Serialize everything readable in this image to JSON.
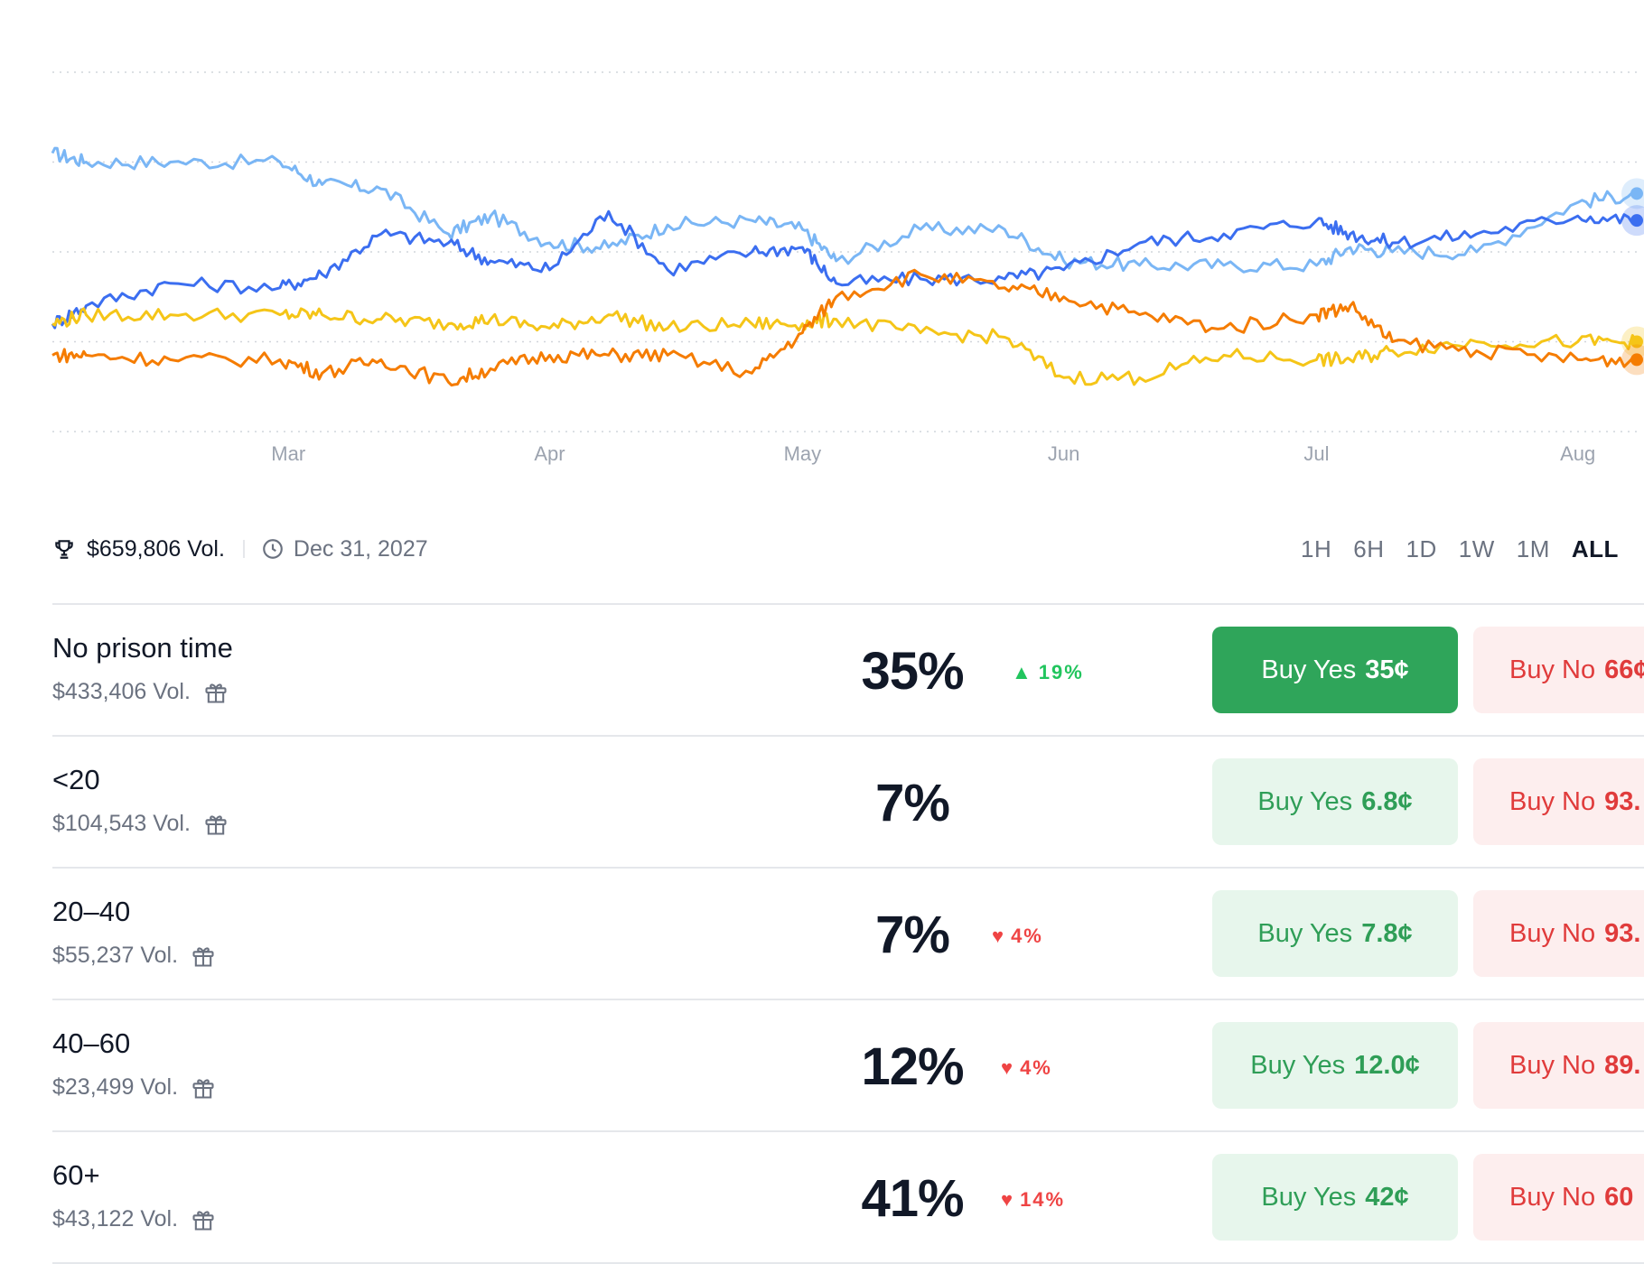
{
  "chart_data": {
    "type": "line",
    "x_ticks": [
      "Mar",
      "Apr",
      "May",
      "Jun",
      "Jul",
      "Aug"
    ],
    "series": [
      {
        "color": "#7ab6f5",
        "x": [
          "Feb 1",
          "Feb 5",
          "Feb 15",
          "Feb 28",
          "Mar 5",
          "Mar 12",
          "Mar 20",
          "Mar 25",
          "Apr 1",
          "Apr 8",
          "Apr 15",
          "Apr 25",
          "May 1",
          "May 5",
          "May 15",
          "May 25",
          "Jun 1",
          "Jun 10",
          "Jun 20",
          "Jul 1",
          "Jul 5",
          "Jul 10",
          "Jul 20",
          "Aug 1",
          "Aug 8"
        ],
        "values": [
          62,
          60,
          60,
          60,
          55,
          54,
          44,
          48,
          42,
          41,
          46,
          47,
          45,
          38,
          45,
          45,
          38,
          37,
          37,
          37,
          41,
          40,
          40,
          51,
          53
        ]
      },
      {
        "color": "#3b6ef0",
        "x": [
          "Feb 1",
          "Feb 5",
          "Feb 15",
          "Feb 28",
          "Mar 5",
          "Mar 12",
          "Mar 20",
          "Mar 25",
          "Apr 1",
          "Apr 8",
          "Apr 15",
          "Apr 25",
          "May 1",
          "May 5",
          "May 15",
          "May 25",
          "Jun 1",
          "Jun 10",
          "Jun 20",
          "Jul 1",
          "Jul 5",
          "Jul 10",
          "Jul 20",
          "Aug 1",
          "Aug 8"
        ],
        "values": [
          24,
          28,
          33,
          32,
          35,
          44,
          42,
          38,
          36,
          49,
          36,
          40,
          41,
          33,
          34,
          34,
          36,
          42,
          44,
          47,
          44,
          42,
          44,
          48,
          47
        ]
      },
      {
        "color": "#f5c518",
        "x": [
          "Feb 1",
          "Feb 5",
          "Feb 15",
          "Feb 28",
          "Mar 5",
          "Mar 12",
          "Mar 20",
          "Mar 25",
          "Apr 1",
          "Apr 8",
          "Apr 15",
          "Apr 25",
          "May 1",
          "May 5",
          "May 15",
          "May 25",
          "Jun 1",
          "Jun 10",
          "Jun 20",
          "Jul 1",
          "Jul 5",
          "Jul 10",
          "Jul 20",
          "Aug 1",
          "Aug 8"
        ],
        "values": [
          24,
          26,
          26,
          26,
          26,
          25,
          24,
          25,
          23,
          26,
          23,
          24,
          24,
          25,
          22,
          21,
          12,
          12,
          17,
          16,
          16,
          18,
          20,
          20,
          20
        ]
      },
      {
        "color": "#f57c00",
        "x": [
          "Feb 1",
          "Feb 5",
          "Feb 15",
          "Feb 28",
          "Mar 5",
          "Mar 12",
          "Mar 20",
          "Mar 25",
          "Apr 1",
          "Apr 8",
          "Apr 15",
          "Apr 25",
          "May 1",
          "May 5",
          "May 15",
          "May 25",
          "Jun 1",
          "Jun 10",
          "Jun 20",
          "Jul 1",
          "Jul 5",
          "Jul 10",
          "Jul 20",
          "Aug 1",
          "Aug 8"
        ],
        "values": [
          17,
          17,
          16,
          16,
          13,
          16,
          11,
          14,
          17,
          17,
          17,
          13,
          22,
          30,
          35,
          32,
          30,
          26,
          23,
          26,
          28,
          20,
          18,
          16,
          16
        ]
      }
    ],
    "ylim": [
      0,
      80
    ],
    "grid": true
  },
  "meta": {
    "volume": "$659,806 Vol.",
    "end_date": "Dec 31, 2027"
  },
  "range_tabs": [
    "1H",
    "6H",
    "1D",
    "1W",
    "1M",
    "ALL"
  ],
  "active_range": "ALL",
  "outcomes": [
    {
      "name": "No prison time",
      "volume": "$433,406 Vol.",
      "percent": "35%",
      "change": "19%",
      "change_dir": "up",
      "yes_label": "Buy Yes",
      "yes_price": "35¢",
      "no_label": "Buy No",
      "no_price": "66¢",
      "yes_style": "solid"
    },
    {
      "name": "<20",
      "volume": "$104,543 Vol.",
      "percent": "7%",
      "change": "",
      "change_dir": "none",
      "yes_label": "Buy Yes",
      "yes_price": "6.8¢",
      "no_label": "Buy No",
      "no_price": "93.",
      "yes_style": "light"
    },
    {
      "name": "20–40",
      "volume": "$55,237 Vol.",
      "percent": "7%",
      "change": "4%",
      "change_dir": "down",
      "yes_label": "Buy Yes",
      "yes_price": "7.8¢",
      "no_label": "Buy No",
      "no_price": "93.",
      "yes_style": "light"
    },
    {
      "name": "40–60",
      "volume": "$23,499 Vol.",
      "percent": "12%",
      "change": "4%",
      "change_dir": "down",
      "yes_label": "Buy Yes",
      "yes_price": "12.0¢",
      "no_label": "Buy No",
      "no_price": "89.",
      "yes_style": "light"
    },
    {
      "name": "60+",
      "volume": "$43,122 Vol.",
      "percent": "41%",
      "change": "14%",
      "change_dir": "down",
      "yes_label": "Buy Yes",
      "yes_price": "42¢",
      "no_label": "Buy No",
      "no_price": "60",
      "yes_style": "light"
    }
  ],
  "icons": {
    "trophy": "trophy-icon",
    "clock": "clock-icon",
    "gift": "gift-icon",
    "more": "list-icon"
  }
}
